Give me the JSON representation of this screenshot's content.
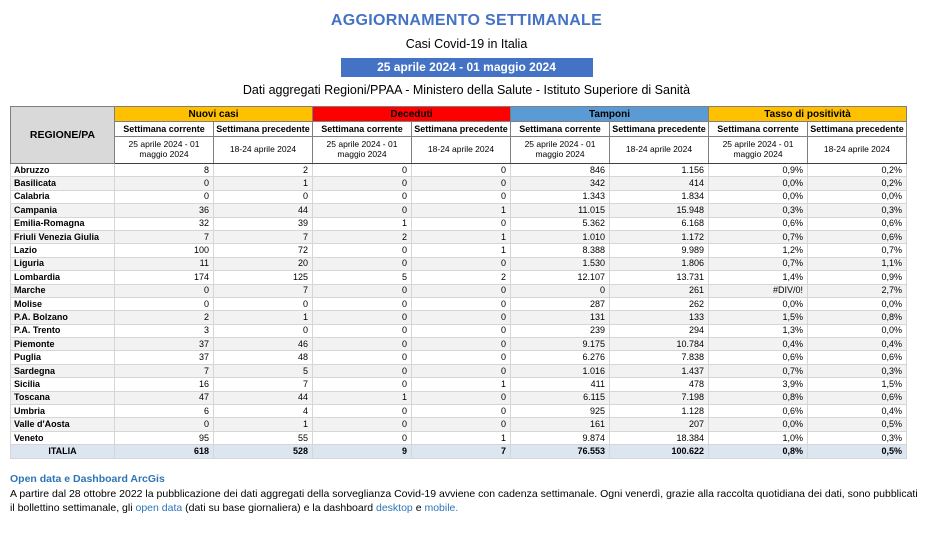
{
  "header": {
    "title": "AGGIORNAMENTO SETTIMANALE",
    "subtitle": "Casi Covid-19 in Italia",
    "date_range": "25 aprile 2024 - 01 maggio 2024",
    "source": "Dati aggregati Regioni/PPAA - Ministero della Salute - Istituto Superiore di Sanità",
    "accent_color": "#4472C4"
  },
  "table": {
    "region_header": "REGIONE/PA",
    "groups": [
      {
        "label": "Nuovi casi",
        "color": "#FFC000"
      },
      {
        "label": "Deceduti",
        "color": "#FF0000"
      },
      {
        "label": "Tamponi",
        "color": "#5B9BD5"
      },
      {
        "label": "Tasso di positività",
        "color": "#FFC000"
      }
    ],
    "subheaders": {
      "current": "Settimana corrente",
      "previous": "Settimana precedente",
      "current_period": "25 aprile 2024 - 01 maggio 2024",
      "previous_period": "18-24 aprile 2024"
    },
    "rows": [
      {
        "region": "Abruzzo",
        "values": [
          "8",
          "2",
          "0",
          "0",
          "846",
          "1.156",
          "0,9%",
          "0,2%"
        ]
      },
      {
        "region": "Basilicata",
        "values": [
          "0",
          "1",
          "0",
          "0",
          "342",
          "414",
          "0,0%",
          "0,2%"
        ]
      },
      {
        "region": "Calabria",
        "values": [
          "0",
          "0",
          "0",
          "0",
          "1.343",
          "1.834",
          "0,0%",
          "0,0%"
        ]
      },
      {
        "region": "Campania",
        "values": [
          "36",
          "44",
          "0",
          "1",
          "11.015",
          "15.948",
          "0,3%",
          "0,3%"
        ]
      },
      {
        "region": "Emilia-Romagna",
        "values": [
          "32",
          "39",
          "1",
          "0",
          "5.362",
          "6.168",
          "0,6%",
          "0,6%"
        ]
      },
      {
        "region": "Friuli Venezia Giulia",
        "values": [
          "7",
          "7",
          "2",
          "1",
          "1.010",
          "1.172",
          "0,7%",
          "0,6%"
        ]
      },
      {
        "region": "Lazio",
        "values": [
          "100",
          "72",
          "0",
          "1",
          "8.388",
          "9.989",
          "1,2%",
          "0,7%"
        ]
      },
      {
        "region": "Liguria",
        "values": [
          "11",
          "20",
          "0",
          "0",
          "1.530",
          "1.806",
          "0,7%",
          "1,1%"
        ]
      },
      {
        "region": "Lombardia",
        "values": [
          "174",
          "125",
          "5",
          "2",
          "12.107",
          "13.731",
          "1,4%",
          "0,9%"
        ]
      },
      {
        "region": "Marche",
        "values": [
          "0",
          "7",
          "0",
          "0",
          "0",
          "261",
          "#DIV/0!",
          "2,7%"
        ]
      },
      {
        "region": "Molise",
        "values": [
          "0",
          "0",
          "0",
          "0",
          "287",
          "262",
          "0,0%",
          "0,0%"
        ]
      },
      {
        "region": "P.A. Bolzano",
        "values": [
          "2",
          "1",
          "0",
          "0",
          "131",
          "133",
          "1,5%",
          "0,8%"
        ]
      },
      {
        "region": "P.A. Trento",
        "values": [
          "3",
          "0",
          "0",
          "0",
          "239",
          "294",
          "1,3%",
          "0,0%"
        ]
      },
      {
        "region": "Piemonte",
        "values": [
          "37",
          "46",
          "0",
          "0",
          "9.175",
          "10.784",
          "0,4%",
          "0,4%"
        ]
      },
      {
        "region": "Puglia",
        "values": [
          "37",
          "48",
          "0",
          "0",
          "6.276",
          "7.838",
          "0,6%",
          "0,6%"
        ]
      },
      {
        "region": "Sardegna",
        "values": [
          "7",
          "5",
          "0",
          "0",
          "1.016",
          "1.437",
          "0,7%",
          "0,3%"
        ]
      },
      {
        "region": "Sicilia",
        "values": [
          "16",
          "7",
          "0",
          "1",
          "411",
          "478",
          "3,9%",
          "1,5%"
        ]
      },
      {
        "region": "Toscana",
        "values": [
          "47",
          "44",
          "1",
          "0",
          "6.115",
          "7.198",
          "0,8%",
          "0,6%"
        ]
      },
      {
        "region": "Umbria",
        "values": [
          "6",
          "4",
          "0",
          "0",
          "925",
          "1.128",
          "0,6%",
          "0,4%"
        ]
      },
      {
        "region": "Valle d'Aosta",
        "values": [
          "0",
          "1",
          "0",
          "0",
          "161",
          "207",
          "0,0%",
          "0,5%"
        ]
      },
      {
        "region": "Veneto",
        "values": [
          "95",
          "55",
          "0",
          "1",
          "9.874",
          "18.384",
          "1,0%",
          "0,3%"
        ]
      }
    ],
    "total_row": {
      "region": "ITALIA",
      "values": [
        "618",
        "528",
        "9",
        "7",
        "76.553",
        "100.622",
        "0,8%",
        "0,5%"
      ]
    },
    "total_row_color": "#DCE6F1"
  },
  "footer": {
    "heading": "Open data e Dashboard ArcGis",
    "link_color": "#2E75B6",
    "segments": [
      {
        "text": "A partire dal 28 ottobre 2022 la pubblicazione dei dati aggregati della sorveglianza Covid-19 avviene con cadenza settimanale. Ogni venerdì, grazie alla raccolta quotidiana dei dati, sono pubblicati il bollettino settimanale, gli ",
        "link": false
      },
      {
        "text": "open data",
        "link": true
      },
      {
        "text": " (dati su base giornaliera) e la dashboard ",
        "link": false
      },
      {
        "text": "desktop",
        "link": true
      },
      {
        "text": " e ",
        "link": false
      },
      {
        "text": "mobile.",
        "link": true
      }
    ]
  }
}
